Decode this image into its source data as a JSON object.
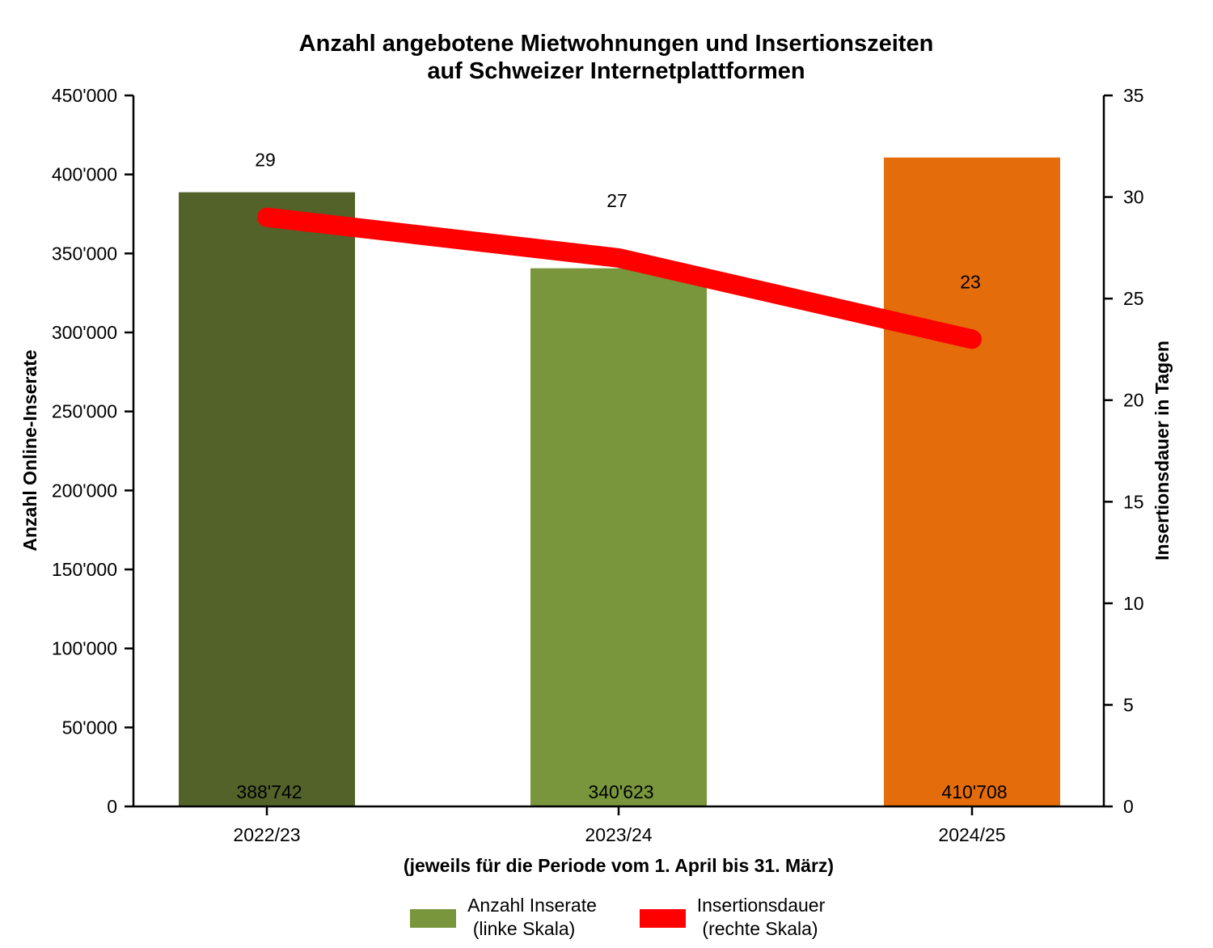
{
  "chart_data": {
    "type": "bar",
    "title_line1": "Anzahl angebotene Mietwohnungen und Insertionszeiten",
    "title_line2": "auf Schweizer Internetplattformen",
    "categories": [
      "2022/23",
      "2023/24",
      "2024/25"
    ],
    "xlabel": "(jeweils für die Periode vom 1. April bis 31. März)",
    "ylabel_left": "Anzahl Online-Inserate",
    "ylabel_right": "Insertionsdauer in Tagen",
    "ylim_left": [
      0,
      450000
    ],
    "ylim_right": [
      0,
      35
    ],
    "left_ticks": [
      "0",
      "50'000",
      "100'000",
      "150'000",
      "200'000",
      "250'000",
      "300'000",
      "350'000",
      "400'000",
      "450'000"
    ],
    "right_ticks": [
      "0",
      "5",
      "10",
      "15",
      "20",
      "25",
      "30",
      "35"
    ],
    "grid": false,
    "legend_position": "bottom",
    "series": [
      {
        "name_line1": "Anzahl Inserate",
        "name_line2": "(linke Skala)",
        "axis": "left",
        "kind": "bar",
        "values": [
          388742,
          340623,
          410708
        ],
        "labels": [
          "388'742",
          "340'623",
          "410'708"
        ],
        "colors": [
          "#526229",
          "#79963c",
          "#e46c0a"
        ],
        "legend_color": "#79963c"
      },
      {
        "name_line1": "Insertionsdauer",
        "name_line2": "(rechte Skala)",
        "axis": "right",
        "kind": "line",
        "values": [
          29,
          27,
          23
        ],
        "labels": [
          "29",
          "27",
          "23"
        ],
        "color": "#ff0000"
      }
    ]
  }
}
